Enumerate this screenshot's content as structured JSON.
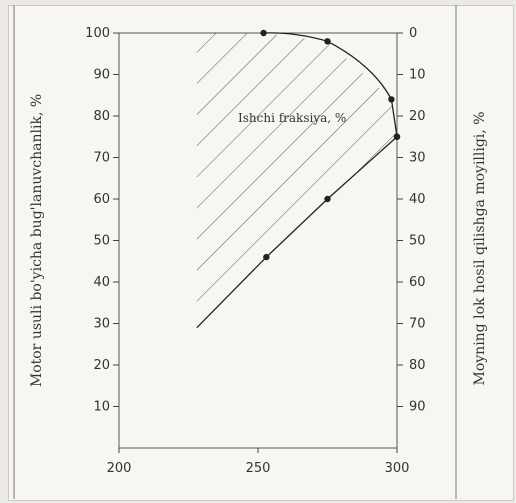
{
  "chart_data": {
    "type": "line",
    "title": "",
    "xlabel": "",
    "ylabel_left": "Motor usuli bo'yicha bug'lanuvchanlik, %",
    "ylabel_right": "Moyning lok hosil qilishga moyilligi, %",
    "xlim": [
      200,
      300
    ],
    "ylim_left": [
      0,
      100
    ],
    "ylim_right": [
      100,
      0
    ],
    "x_ticks": [
      200,
      250,
      300
    ],
    "y_ticks_left": [
      10,
      20,
      30,
      40,
      50,
      60,
      70,
      80,
      90,
      100
    ],
    "y_ticks_right": [
      0,
      10,
      20,
      30,
      40,
      50,
      60,
      70,
      80,
      90
    ],
    "grid": false,
    "hatched_region_label": "Ishchi fraksiya, %",
    "series": [
      {
        "values_axis": "left",
        "x": [
          228,
          253,
          275,
          300
        ],
        "y": [
          29,
          46,
          60,
          75
        ]
      },
      {
        "values_axis": "right",
        "x": [
          252,
          275,
          298,
          300
        ],
        "y": [
          0,
          2,
          16,
          25
        ]
      }
    ]
  }
}
